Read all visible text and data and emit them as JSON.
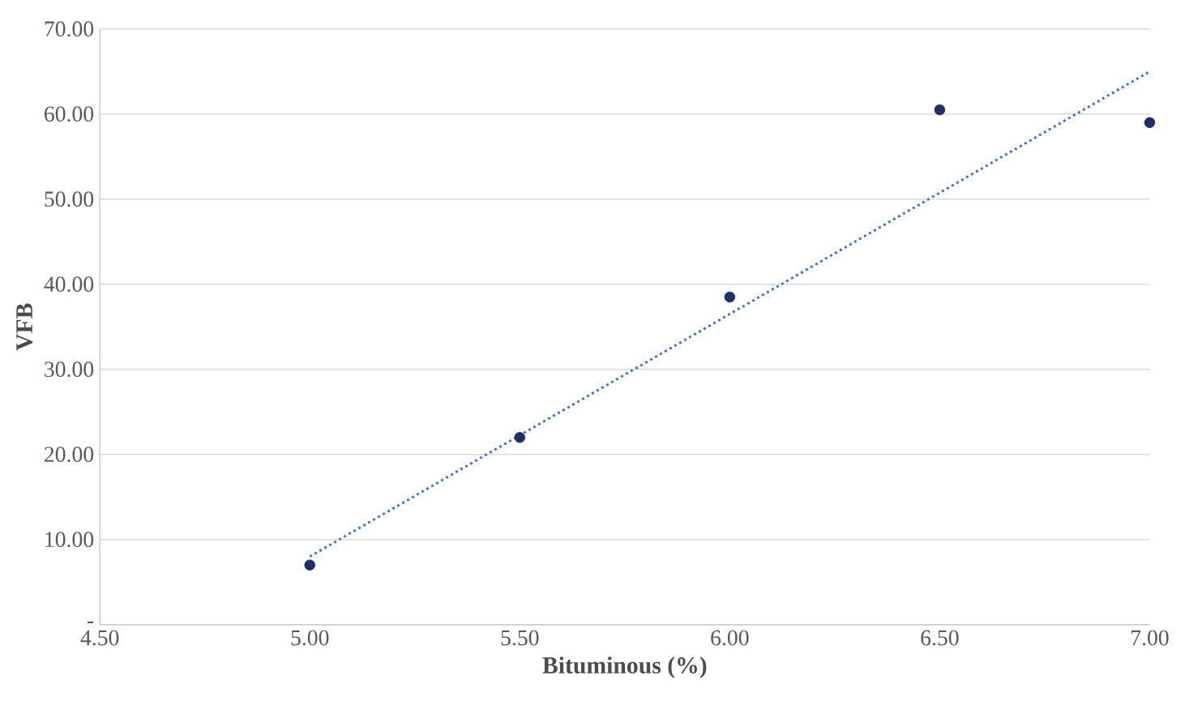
{
  "chart_data": {
    "type": "scatter",
    "xlabel": "Bituminous (%)",
    "ylabel": "VFB",
    "series": [
      {
        "color": "#1f2d6b",
        "marker": "circle",
        "x": [
          5.0,
          5.5,
          6.0,
          6.5,
          7.0
        ],
        "values": [
          7.0,
          22.0,
          38.5,
          60.5,
          59.0
        ]
      },
      {
        "type": "line",
        "color": "#4472c4",
        "line_style": "dotted",
        "marker": "none",
        "x": [
          5.0,
          7.0
        ],
        "values": [
          8.0,
          65.0
        ]
      }
    ],
    "xlim": [
      4.5,
      7.0
    ],
    "ylim": [
      0,
      70
    ],
    "xticks": [
      {
        "value": 4.5,
        "label": "4.50"
      },
      {
        "value": 5.0,
        "label": "5.00"
      },
      {
        "value": 5.5,
        "label": "5.50"
      },
      {
        "value": 6.0,
        "label": "6.00"
      },
      {
        "value": 6.5,
        "label": "6.50"
      },
      {
        "value": 7.0,
        "label": "7.00"
      }
    ],
    "yticks": [
      {
        "value": 0,
        "label": "-"
      },
      {
        "value": 10,
        "label": "10.00"
      },
      {
        "value": 20,
        "label": "20.00"
      },
      {
        "value": 30,
        "label": "30.00"
      },
      {
        "value": 40,
        "label": "40.00"
      },
      {
        "value": 50,
        "label": "50.00"
      },
      {
        "value": 60,
        "label": "60.00"
      },
      {
        "value": 70,
        "label": "70.00"
      }
    ],
    "grid": "y"
  }
}
